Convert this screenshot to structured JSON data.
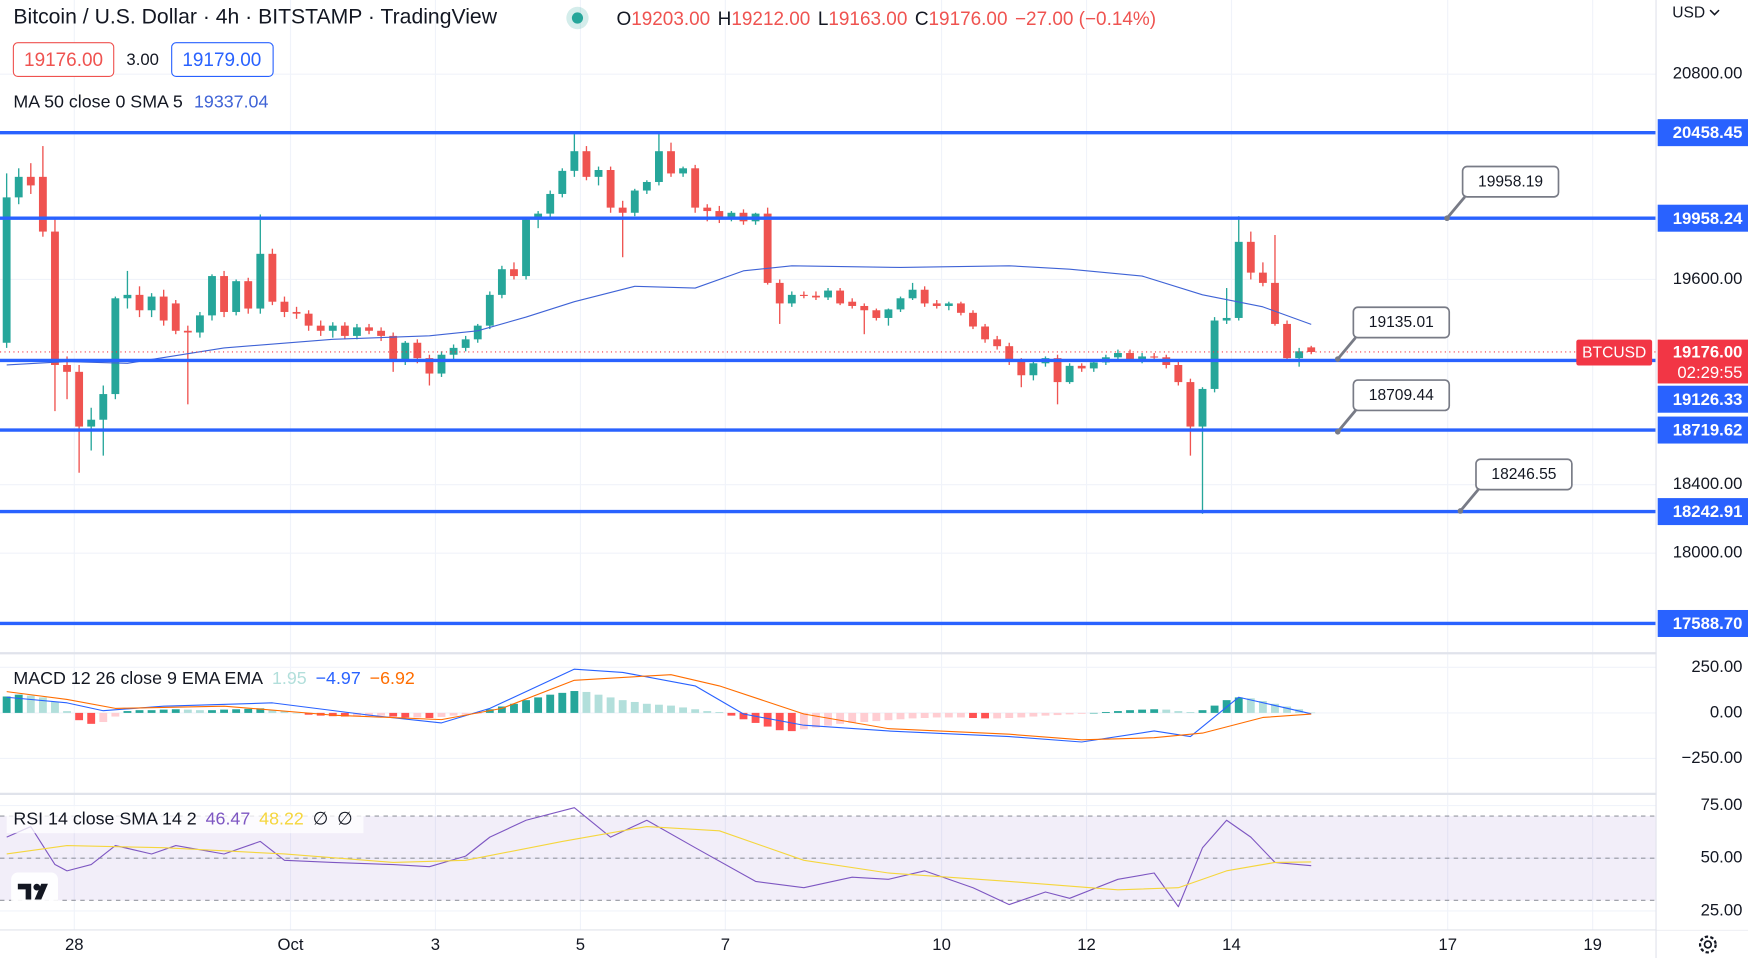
{
  "header": {
    "symbol": "Bitcoin / U.S. Dollar · 4h · BITSTAMP · TradingView",
    "ohlc": [
      {
        "key": "O",
        "value": "19203.00"
      },
      {
        "key": "H",
        "value": "19212.00"
      },
      {
        "key": "L",
        "value": "19163.00"
      },
      {
        "key": "C",
        "value": "19176.00"
      }
    ],
    "change": "−27.00 (−0.14%)"
  },
  "quote": {
    "bid": "19176.00",
    "spread": "3.00",
    "ask": "19179.00"
  },
  "currency": "USD",
  "chart_data": [
    {
      "type": "candlestick",
      "legend": {
        "label": "MA 50 close 0 SMA 5",
        "value": "19337.04"
      },
      "ylim": [
        17421,
        21234
      ],
      "yticks": [
        {
          "value": 20800,
          "label": "20800.00"
        },
        {
          "value": 19600,
          "label": "19600.00"
        },
        {
          "value": 18400,
          "label": "18400.00"
        },
        {
          "value": 18000,
          "label": "18000.00"
        }
      ],
      "xlim": [
        -0.55,
        136.5
      ],
      "xticks": [
        {
          "value": 5.6,
          "label": "28"
        },
        {
          "value": 23.5,
          "label": "Oct"
        },
        {
          "value": 35.5,
          "label": "3"
        },
        {
          "value": 47.5,
          "label": "5"
        },
        {
          "value": 59.5,
          "label": "7"
        },
        {
          "value": 77.4,
          "label": "10"
        },
        {
          "value": 89.4,
          "label": "12"
        },
        {
          "value": 101.4,
          "label": "14"
        },
        {
          "value": 119.3,
          "label": "17"
        },
        {
          "value": 131.3,
          "label": "19"
        }
      ],
      "up_color": "#26a69a",
      "down_color": "#ef5350",
      "ohlc": [
        [
          19230,
          20220,
          19200,
          20080
        ],
        [
          20080,
          20250,
          20040,
          20200
        ],
        [
          20200,
          20280,
          20100,
          20150
        ],
        [
          20200,
          20380,
          19850,
          19880
        ],
        [
          19880,
          19950,
          18830,
          19100
        ],
        [
          19100,
          19150,
          18900,
          19060
        ],
        [
          19060,
          19100,
          18470,
          18740
        ],
        [
          18740,
          18850,
          18600,
          18780
        ],
        [
          18780,
          18980,
          18570,
          18930
        ],
        [
          18930,
          19500,
          18900,
          19490
        ],
        [
          19490,
          19650,
          19430,
          19510
        ],
        [
          19510,
          19560,
          19380,
          19420
        ],
        [
          19420,
          19520,
          19380,
          19500
        ],
        [
          19500,
          19540,
          19330,
          19360
        ],
        [
          19460,
          19480,
          19280,
          19300
        ],
        [
          19300,
          19330,
          18870,
          19290
        ],
        [
          19290,
          19410,
          19260,
          19390
        ],
        [
          19390,
          19630,
          19360,
          19620
        ],
        [
          19620,
          19650,
          19380,
          19410
        ],
        [
          19410,
          19600,
          19390,
          19590
        ],
        [
          19590,
          19610,
          19400,
          19430
        ],
        [
          19430,
          19980,
          19400,
          19750
        ],
        [
          19750,
          19780,
          19450,
          19470
        ],
        [
          19470,
          19500,
          19380,
          19410
        ],
        [
          19410,
          19440,
          19370,
          19400
        ],
        [
          19400,
          19420,
          19300,
          19330
        ],
        [
          19330,
          19360,
          19270,
          19300
        ],
        [
          19300,
          19350,
          19260,
          19330
        ],
        [
          19330,
          19350,
          19250,
          19270
        ],
        [
          19270,
          19340,
          19250,
          19320
        ],
        [
          19320,
          19340,
          19280,
          19300
        ],
        [
          19300,
          19320,
          19240,
          19270
        ],
        [
          19270,
          19290,
          19060,
          19130
        ],
        [
          19130,
          19240,
          19100,
          19230
        ],
        [
          19230,
          19250,
          19110,
          19140
        ],
        [
          19140,
          19160,
          18980,
          19050
        ],
        [
          19050,
          19180,
          19030,
          19160
        ],
        [
          19160,
          19220,
          19130,
          19200
        ],
        [
          19200,
          19270,
          19180,
          19250
        ],
        [
          19250,
          19340,
          19230,
          19330
        ],
        [
          19330,
          19530,
          19310,
          19510
        ],
        [
          19510,
          19680,
          19490,
          19660
        ],
        [
          19660,
          19700,
          19600,
          19620
        ],
        [
          19620,
          19960,
          19600,
          19950
        ],
        [
          19950,
          20000,
          19900,
          19985
        ],
        [
          19985,
          20120,
          19960,
          20100
        ],
        [
          20100,
          20250,
          20080,
          20235
        ],
        [
          20235,
          20450,
          20200,
          20350
        ],
        [
          20350,
          20380,
          20180,
          20200
        ],
        [
          20200,
          20260,
          20150,
          20240
        ],
        [
          20240,
          20260,
          19990,
          20020
        ],
        [
          20020,
          20060,
          19730,
          19990
        ],
        [
          19990,
          20130,
          19970,
          20120
        ],
        [
          20120,
          20180,
          20100,
          20170
        ],
        [
          20170,
          20450,
          20150,
          20350
        ],
        [
          20350,
          20400,
          20200,
          20220
        ],
        [
          20220,
          20260,
          20200,
          20250
        ],
        [
          20250,
          20270,
          19990,
          20020
        ],
        [
          20020,
          20040,
          19940,
          20000
        ],
        [
          20000,
          20030,
          19930,
          19960
        ],
        [
          19960,
          20000,
          19940,
          19990
        ],
        [
          19990,
          20010,
          19920,
          19940
        ],
        [
          19940,
          19990,
          19920,
          19985
        ],
        [
          19985,
          20020,
          19570,
          19580
        ],
        [
          19580,
          19600,
          19340,
          19460
        ],
        [
          19460,
          19530,
          19440,
          19510
        ],
        [
          19510,
          19530,
          19490,
          19505
        ],
        [
          19505,
          19530,
          19480,
          19495
        ],
        [
          19495,
          19550,
          19480,
          19535
        ],
        [
          19535,
          19550,
          19450,
          19460
        ],
        [
          19470,
          19490,
          19430,
          19445
        ],
        [
          19445,
          19460,
          19280,
          19420
        ],
        [
          19420,
          19430,
          19360,
          19375
        ],
        [
          19375,
          19430,
          19330,
          19425
        ],
        [
          19425,
          19500,
          19410,
          19490
        ],
        [
          19490,
          19580,
          19480,
          19540
        ],
        [
          19540,
          19560,
          19440,
          19460
        ],
        [
          19460,
          19480,
          19430,
          19445
        ],
        [
          19445,
          19470,
          19420,
          19460
        ],
        [
          19460,
          19470,
          19390,
          19405
        ],
        [
          19405,
          19420,
          19310,
          19325
        ],
        [
          19325,
          19340,
          19230,
          19250
        ],
        [
          19250,
          19270,
          19190,
          19210
        ],
        [
          19210,
          19230,
          19100,
          19120
        ],
        [
          19120,
          19140,
          18970,
          19040
        ],
        [
          19040,
          19120,
          19010,
          19110
        ],
        [
          19110,
          19150,
          19090,
          19140
        ],
        [
          19140,
          19160,
          18870,
          19000
        ],
        [
          19000,
          19110,
          18990,
          19095
        ],
        [
          19095,
          19110,
          19060,
          19080
        ],
        [
          19080,
          19130,
          19060,
          19115
        ],
        [
          19115,
          19160,
          19100,
          19145
        ],
        [
          19145,
          19190,
          19130,
          19170
        ],
        [
          19170,
          19190,
          19120,
          19130
        ],
        [
          19130,
          19170,
          19110,
          19150
        ],
        [
          19150,
          19170,
          19130,
          19145
        ],
        [
          19145,
          19160,
          19080,
          19100
        ],
        [
          19100,
          19120,
          18980,
          19000
        ],
        [
          19000,
          19020,
          18570,
          18740
        ],
        [
          18740,
          18970,
          18230,
          18960
        ],
        [
          18960,
          19380,
          18940,
          19360
        ],
        [
          19360,
          19550,
          19340,
          19375
        ],
        [
          19375,
          19970,
          19360,
          19820
        ],
        [
          19820,
          19880,
          19600,
          19640
        ],
        [
          19640,
          19700,
          19560,
          19580
        ],
        [
          19580,
          19860,
          19330,
          19340
        ],
        [
          19340,
          19360,
          19120,
          19140
        ],
        [
          19140,
          19200,
          19090,
          19180
        ],
        [
          19203,
          19212,
          19163,
          19176
        ]
      ],
      "ma": {
        "color": "#3f63d6",
        "x": [
          0,
          5,
          10,
          18,
          27,
          35,
          39,
          43,
          47,
          52,
          57,
          61,
          65,
          74,
          83,
          88,
          94,
          99,
          104,
          108
        ],
        "values": [
          19100,
          19120,
          19110,
          19200,
          19250,
          19270,
          19300,
          19380,
          19470,
          19560,
          19550,
          19650,
          19680,
          19670,
          19680,
          19660,
          19620,
          19510,
          19440,
          19337.04
        ]
      },
      "level_color": "#2962ff",
      "levels": [
        20458.45,
        19958.24,
        19126.33,
        18719.62,
        18242.91,
        {
          "value": 17588.7,
          "label": "17588.70"
        }
      ],
      "callouts": [
        19958.19,
        19135.01,
        18709.44,
        18246.55
      ],
      "last": {
        "value": 19176,
        "label": "19176.00",
        "symbol": "BTCUSD",
        "countdown": "02:29:55",
        "color": "#f23645"
      }
    },
    {
      "type": "macd",
      "legend": {
        "label": "MACD 12 26 close 9 EMA EMA",
        "values": [
          "1.95",
          "−4.97",
          "−6.92"
        ]
      },
      "ylim": [
        -438,
        321
      ],
      "yticks": [
        {
          "value": 250,
          "label": "250.00"
        },
        {
          "value": 0,
          "label": "0.00"
        },
        {
          "value": -250,
          "label": "−250.00"
        }
      ],
      "histogram_colors": [
        "#26a69a",
        "#b2dfdb",
        "#ffcdd2",
        "#ff5252"
      ],
      "histogram": [
        90,
        100,
        95,
        85,
        60,
        10,
        -40,
        -60,
        -50,
        -20,
        10,
        15,
        15,
        18,
        20,
        18,
        15,
        15,
        18,
        20,
        22,
        25,
        15,
        10,
        0,
        -10,
        -15,
        -18,
        -20,
        -20,
        -18,
        -15,
        -20,
        -25,
        -25,
        -28,
        -22,
        -15,
        -10,
        -5,
        20,
        35,
        50,
        70,
        85,
        100,
        110,
        120,
        115,
        100,
        85,
        70,
        60,
        50,
        45,
        40,
        30,
        20,
        10,
        5,
        -15,
        -35,
        -55,
        -75,
        -95,
        -100,
        -90,
        -80,
        -70,
        -60,
        -55,
        -50,
        -45,
        -40,
        -35,
        -30,
        -28,
        -25,
        -25,
        -25,
        -28,
        -30,
        -30,
        -28,
        -25,
        -20,
        -15,
        -12,
        -8,
        -5,
        0,
        5,
        10,
        15,
        18,
        20,
        18,
        10,
        5,
        15,
        40,
        70,
        85,
        80,
        65,
        50,
        35,
        20,
        1.95
      ],
      "macd": {
        "color": "#2962ff",
        "x": [
          0,
          5,
          8,
          13,
          22,
          30,
          36,
          40,
          47,
          51,
          57,
          61,
          66,
          73,
          83,
          89,
          95,
          98,
          102,
          108
        ],
        "values": [
          86,
          55,
          12,
          37,
          55,
          -12,
          -55,
          25,
          240,
          222,
          148,
          -6,
          -68,
          -99,
          -130,
          -160,
          -99,
          -130,
          86,
          -4.97
        ]
      },
      "signal": {
        "color": "#ff6d00",
        "x": [
          0,
          5,
          9,
          18,
          27,
          36,
          41,
          47,
          55,
          59,
          66,
          73,
          83,
          89,
          95,
          99,
          104,
          108
        ],
        "values": [
          117,
          74,
          25,
          37,
          -12,
          -37,
          25,
          179,
          210,
          148,
          -6,
          -86,
          -117,
          -148,
          -136,
          -111,
          -25,
          -6.92
        ]
      }
    },
    {
      "type": "rsi",
      "legend": {
        "label": "RSI 14 close SMA 14 2",
        "values": [
          "46.47",
          "48.22",
          "∅",
          "∅"
        ]
      },
      "ylim": [
        16,
        80
      ],
      "yticks": [
        {
          "value": 75,
          "label": "75.00"
        },
        {
          "value": 50,
          "label": "50.00"
        },
        {
          "value": 25,
          "label": "25.00"
        }
      ],
      "levels": [
        70,
        50,
        30
      ],
      "band_color": "#7e57c2",
      "rsi": {
        "color": "#7e57c2",
        "x": [
          0,
          2,
          4,
          5,
          7,
          9,
          12,
          14,
          18,
          21,
          23,
          27,
          32,
          35,
          38,
          40,
          43,
          47,
          50,
          53,
          57,
          62,
          66,
          70,
          73,
          76,
          80,
          83,
          86,
          88,
          92,
          95,
          97,
          99,
          101,
          103,
          105,
          108
        ],
        "values": [
          60,
          65,
          47,
          44,
          47,
          56,
          52,
          56,
          52,
          58,
          49,
          48,
          47,
          46,
          51,
          60,
          68,
          74,
          60,
          68,
          55,
          39,
          36,
          41,
          40,
          44,
          36,
          28,
          34,
          31,
          40,
          43,
          27,
          55,
          68,
          60,
          48,
          46.47
        ]
      },
      "sma": {
        "color": "#f5d63d",
        "x": [
          0,
          5,
          13,
          23,
          32,
          38,
          46,
          53,
          59,
          66,
          73,
          83,
          92,
          97,
          101,
          105,
          108
        ],
        "values": [
          52,
          56,
          55,
          52,
          48,
          49,
          58,
          65,
          63,
          49,
          43,
          39,
          35,
          36,
          44,
          48,
          48.22
        ]
      }
    }
  ]
}
